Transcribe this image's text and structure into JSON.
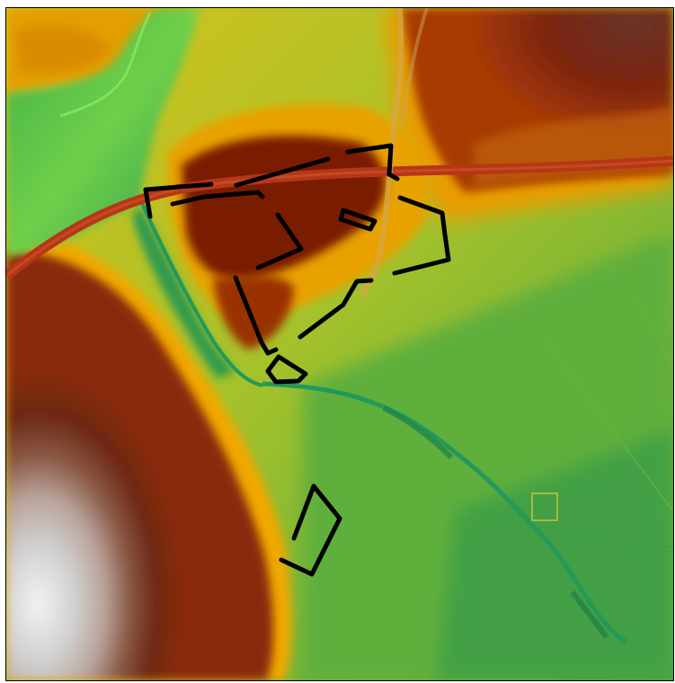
{
  "map": {
    "kind": "elevation-hillshade",
    "color_ramp": {
      "lowest": "#1f8f35",
      "low": "#6dbf3a",
      "mid": "#b4c524",
      "midhigh": "#f1b400",
      "high": "#9c2f00",
      "higher": "#5a1c10",
      "peak": "#c9c9c9",
      "summit": "#f4f4f4"
    },
    "features": {
      "road_color": "#b5361a",
      "stream_color": "#23995a",
      "outline_color": "#000000"
    }
  }
}
